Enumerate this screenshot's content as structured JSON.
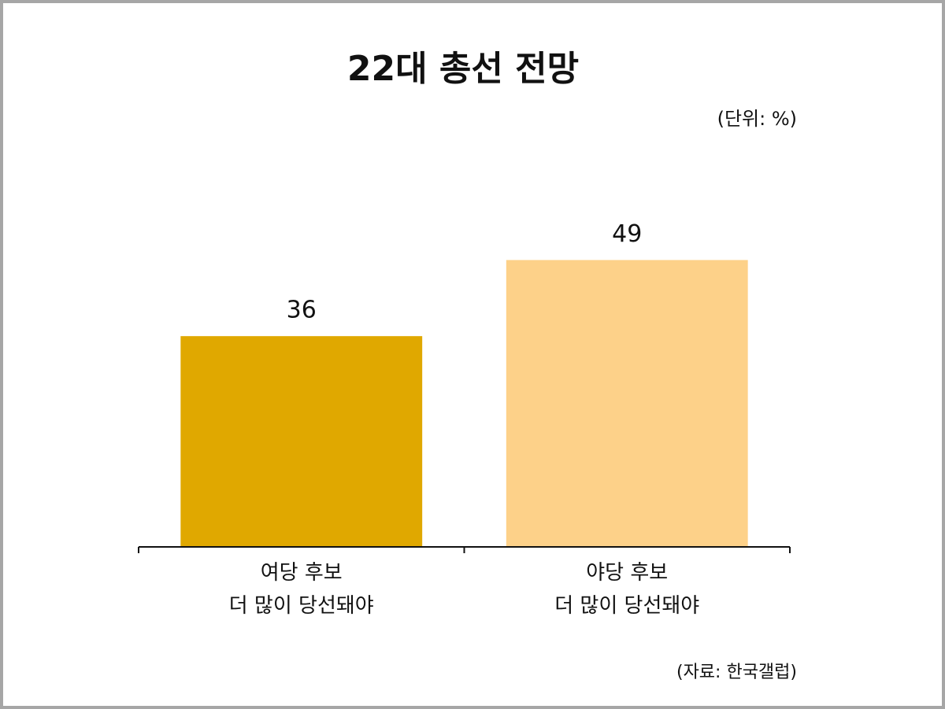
{
  "chart_data": {
    "type": "bar",
    "title": "22대 총선 전망",
    "unit_note": "(단위: %)",
    "source": "(자료: 한국갤럽)",
    "categories": [
      "여당 후보\n더 많이 당선돼야",
      "야당 후보\n더 많이 당선돼야"
    ],
    "values": [
      36,
      49
    ],
    "colors": [
      "#e0a800",
      "#fdd189"
    ],
    "ylim": [
      0,
      60
    ],
    "grid": false
  }
}
